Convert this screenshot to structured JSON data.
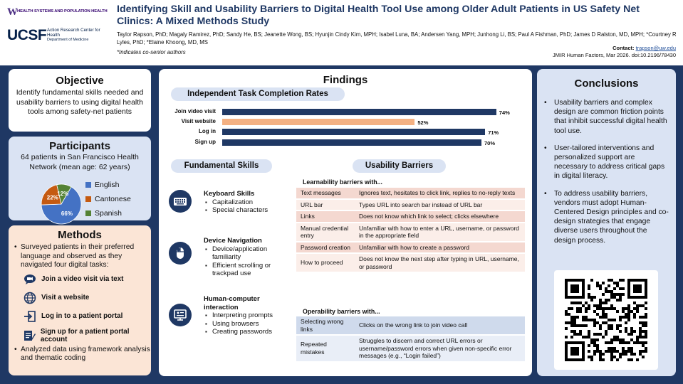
{
  "header": {
    "uw_name": "HEALTH SYSTEMS AND POPULATION HEALTH",
    "ucsf_name": "UCSF",
    "ucsf_center": "Action Research Center for Health",
    "ucsf_dept": "Department of Medicine",
    "title": "Identifying Skill and Usability Barriers to Digital Health Tool Use among Older Adult Patients in US Safety Net Clinics: A Mixed Methods Study",
    "authors": "Taylor Rapson, PhD; Magaly Ramirez, PhD; Sandy He, BS; Jeanette Wong, BS; Hyunjin Cindy Kim, MPH; Isabel Luna, BA; Andersen Yang, MPH; Junhong Li, BS; Paul A Fishman, PhD; James D Ralston, MD, MPH; *Courtney R Lyles, PhD; *Elaine Khoong, MD, MS",
    "cosenior": "*Indicates co-senior authors",
    "contact_label": "Contact:",
    "contact_email": "trapson@uw.edu",
    "citation": "JMIR Human Factors, Mar 2026. doi:10.2196/78430"
  },
  "objective": {
    "title": "Objective",
    "text": "Identify fundamental skills needed and usability barriers to using digital health tools among safety-net patients"
  },
  "participants": {
    "title": "Participants",
    "text": "64 patients in San Francisco Health Network (mean age: 62 years)",
    "colors": [
      "#4472c4",
      "#c55a11",
      "#548235"
    ]
  },
  "chart_data": [
    {
      "type": "pie",
      "title": "",
      "categories": [
        "English",
        "Cantonese",
        "Spanish"
      ],
      "values": [
        66,
        22,
        12
      ],
      "labels": [
        "66%",
        "22%",
        "12%"
      ]
    },
    {
      "type": "bar",
      "title": "Independent Task Completion Rates",
      "categories": [
        "Join video visit",
        "Visit website",
        "Log in",
        "Sign up"
      ],
      "values": [
        74,
        52,
        71,
        70
      ],
      "labels": [
        "74%",
        "52%",
        "71%",
        "70%"
      ],
      "xlim": [
        0,
        100
      ],
      "colors": [
        "#1f3864",
        "#f4b183",
        "#1f3864",
        "#1f3864"
      ]
    }
  ],
  "methods": {
    "title": "Methods",
    "intro": "Surveyed patients in their preferred language and observed as they navigated four digital tasks:",
    "tasks": [
      {
        "label": "Join a video visit via text",
        "icon": "chat-video-icon"
      },
      {
        "label": "Visit a website",
        "icon": "globe-icon"
      },
      {
        "label": "Log in to a patient portal",
        "icon": "login-icon"
      },
      {
        "label": "Sign up for a patient portal account",
        "icon": "signup-icon"
      }
    ],
    "outro": "Analyzed data using framework analysis and thematic coding"
  },
  "findings": {
    "title": "Findings",
    "completion_title": "Independent Task Completion Rates",
    "skills_title": "Fundamental Skills",
    "barriers_title": "Usability Barriers",
    "skills": [
      {
        "title": "Keyboard Skills",
        "icon": "keyboard-icon",
        "items": [
          "Capitalization",
          "Special characters"
        ]
      },
      {
        "title": "Device Navigation",
        "icon": "mouse-icon",
        "items": [
          "Device/application familiarity",
          "Efficient scrolling or trackpad use"
        ]
      },
      {
        "title": "Human-computer interaction",
        "icon": "computer-interaction-icon",
        "items": [
          "Interpreting prompts",
          "Using browsers",
          "Creating passwords"
        ]
      }
    ],
    "learnability_title": "Learnability barriers with...",
    "learnability": [
      {
        "k": "Text messages",
        "v": "Ignores text, hesitates to click link, replies to no-reply texts"
      },
      {
        "k": "URL bar",
        "v": "Types URL into search bar instead of URL bar"
      },
      {
        "k": "Links",
        "v": "Does not know which link to select; clicks elsewhere"
      },
      {
        "k": "Manual credential entry",
        "v": "Unfamiliar with how to enter a URL, username, or password in the appropriate field"
      },
      {
        "k": "Password creation",
        "v": "Unfamiliar with how to create a password"
      },
      {
        "k": "How to proceed",
        "v": "Does not know the next step after typing in URL, username, or password"
      }
    ],
    "operability_title": "Operability barriers with...",
    "operability": [
      {
        "k": "Selecting wrong links",
        "v": "Clicks on the wrong link to join video call"
      },
      {
        "k": "Repeated mistakes",
        "v": "Struggles to discern and correct URL errors or username/password errors when given non-specific error messages (e.g., “Login failed”)"
      }
    ]
  },
  "conclusions": {
    "title": "Conclusions",
    "items": [
      "Usability barriers and complex design are common friction points that inhibit successful digital health tool use.",
      "User-tailored interventions and personalized support are necessary to address critical gaps in digital literacy.",
      "To address usability barriers, vendors must adopt Human-Centered Design principles and co-design strategies that engage diverse users throughout the design process."
    ]
  }
}
